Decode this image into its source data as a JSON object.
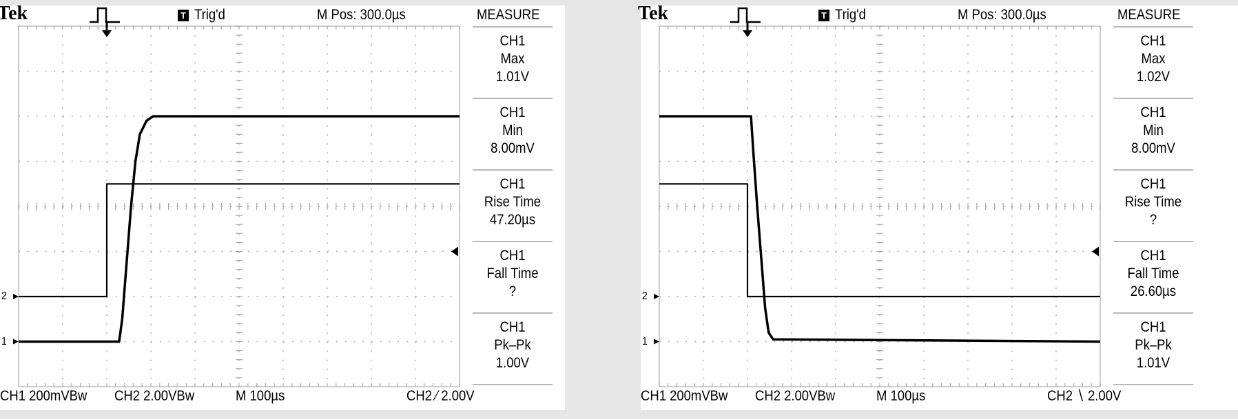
{
  "scopes": [
    {
      "brand": "Tek",
      "trigger_state": "Trig'd",
      "trigger_state_icon": "T",
      "m_pos": "M Pos: 300.0µs",
      "measure_title": "MEASURE",
      "measurements": [
        {
          "channel": "CH1",
          "name": "Max",
          "value": "1.01V"
        },
        {
          "channel": "CH1",
          "name": "Min",
          "value": "8.00mV"
        },
        {
          "channel": "CH1",
          "name": "Rise Time",
          "value": "47.20µs"
        },
        {
          "channel": "CH1",
          "name": "Fall Time",
          "value": "?"
        },
        {
          "channel": "CH1",
          "name": "Pk–Pk",
          "value": "1.00V"
        }
      ],
      "status": {
        "ch1": "CH1  200mVBᴡ",
        "ch2": "CH2  2.00VBᴡ",
        "timebase": "M 100µs",
        "trigger": "CH2 ∕ 2.00V"
      },
      "markers": {
        "ch1": "1",
        "ch2": "2"
      }
    },
    {
      "brand": "Tek",
      "trigger_state": "Trig'd",
      "trigger_state_icon": "T",
      "m_pos": "M Pos: 300.0µs",
      "measure_title": "MEASURE",
      "measurements": [
        {
          "channel": "CH1",
          "name": "Max",
          "value": "1.02V"
        },
        {
          "channel": "CH1",
          "name": "Min",
          "value": "8.00mV"
        },
        {
          "channel": "CH1",
          "name": "Rise Time",
          "value": "?"
        },
        {
          "channel": "CH1",
          "name": "Fall Time",
          "value": "26.60µs"
        },
        {
          "channel": "CH1",
          "name": "Pk–Pk",
          "value": "1.01V"
        }
      ],
      "status": {
        "ch1": "CH1  200mVBᴡ",
        "ch2": "CH2  2.00VBᴡ",
        "timebase": "M 100µs",
        "trigger": "CH2 ∖ 2.00V"
      },
      "markers": {
        "ch1": "1",
        "ch2": "2"
      }
    }
  ],
  "chart_data": [
    {
      "type": "line",
      "x_unit": "µs",
      "xlim": [
        0,
        1000
      ],
      "trigger_time": 200,
      "divisions": [
        10,
        8
      ],
      "grid": true,
      "series": [
        {
          "name": "CH1",
          "volts_per_div": 0.2,
          "ground_div_from_top": 7,
          "points": [
            [
              0,
              0
            ],
            [
              228,
              0
            ],
            [
              235,
              0.1
            ],
            [
              245,
              0.35
            ],
            [
              255,
              0.6
            ],
            [
              265,
              0.8
            ],
            [
              275,
              0.92
            ],
            [
              290,
              0.98
            ],
            [
              305,
              1.0
            ],
            [
              1000,
              1.0
            ]
          ]
        },
        {
          "name": "CH2",
          "volts_per_div": 2.0,
          "ground_div_from_top": 6,
          "points": [
            [
              0,
              0
            ],
            [
              200,
              0
            ],
            [
              200,
              5
            ],
            [
              1000,
              5
            ]
          ]
        }
      ]
    },
    {
      "type": "line",
      "x_unit": "µs",
      "xlim": [
        0,
        1000
      ],
      "trigger_time": 200,
      "divisions": [
        10,
        8
      ],
      "grid": true,
      "series": [
        {
          "name": "CH1",
          "volts_per_div": 0.2,
          "ground_div_from_top": 7,
          "points": [
            [
              0,
              1.0
            ],
            [
              208,
              1.0
            ],
            [
              213,
              0.85
            ],
            [
              222,
              0.6
            ],
            [
              232,
              0.35
            ],
            [
              240,
              0.15
            ],
            [
              248,
              0.04
            ],
            [
              258,
              0.01
            ],
            [
              1000,
              0
            ]
          ]
        },
        {
          "name": "CH2",
          "volts_per_div": 2.0,
          "ground_div_from_top": 6,
          "points": [
            [
              0,
              5
            ],
            [
              200,
              5
            ],
            [
              200,
              0
            ],
            [
              1000,
              0
            ]
          ]
        }
      ]
    }
  ]
}
